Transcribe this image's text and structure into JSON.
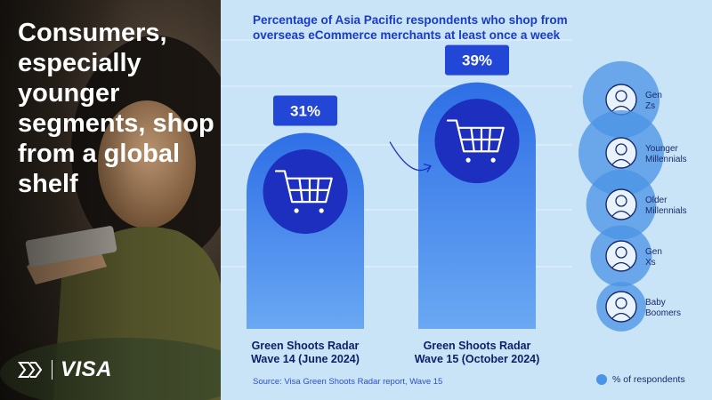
{
  "photo_panel": {
    "headline": "Consumers, especially younger segments, shop from a global shelf",
    "brand": "VISA"
  },
  "chart_data": {
    "type": "bar",
    "title": "Percentage of Asia Pacific respondents who shop from overseas eCommerce merchants at least once a week",
    "categories": [
      [
        "Green Shoots Radar",
        "Wave 14 (June 2024)"
      ],
      [
        "Green Shoots Radar",
        "Wave 15 (October 2024)"
      ]
    ],
    "values": [
      31,
      39
    ],
    "data_labels": [
      "31%",
      "39%"
    ],
    "unit": "%",
    "ylim": [
      0,
      45
    ],
    "grid": true,
    "segments": [
      {
        "label": "Gen Zs",
        "size": 0.9
      },
      {
        "label": "Younger Millennials",
        "size": 1.0
      },
      {
        "label": "Older Millennials",
        "size": 0.82
      },
      {
        "label": "Gen Xs",
        "size": 0.72
      },
      {
        "label": "Baby Boomers",
        "size": 0.58
      }
    ],
    "legend": {
      "label": "% of respondents",
      "placement": "bottom-right"
    },
    "source": "Source: Visa Green Shoots Radar report, Wave 15"
  },
  "colors": {
    "background": "#c9e4f7",
    "bar_top": "#2e6fe6",
    "bar_bottom": "#6aa8f3",
    "label_box": "#2246d6",
    "cart_circle": "#1c2fbf",
    "bubble": "#4a93e6",
    "title_text": "#1a3bc8",
    "category_text": "#0f1f66"
  }
}
